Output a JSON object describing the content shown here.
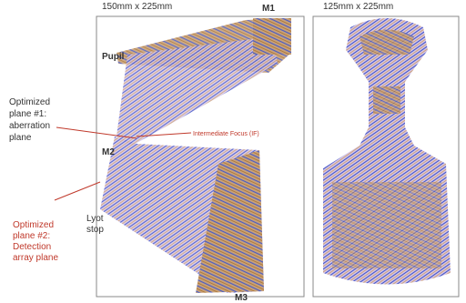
{
  "header": {
    "left_size": "150mm x 225mm",
    "right_size": "125mm x 225mm"
  },
  "labels": {
    "m1": "M1",
    "m2": "M2",
    "m3": "M3",
    "pupil": "Pupil",
    "intermediate_focus": "Intermediate Focus (IF)",
    "optimized_plane_1": {
      "lines": [
        "Optimized",
        "plane #1:",
        "aberration",
        "plane"
      ]
    },
    "optimized_plane_2": {
      "lines": [
        "Optimized",
        "plane #2:",
        "Detection",
        "array plane"
      ]
    },
    "lyot_stop": {
      "lines": [
        "Lyot",
        "stop"
      ]
    }
  }
}
